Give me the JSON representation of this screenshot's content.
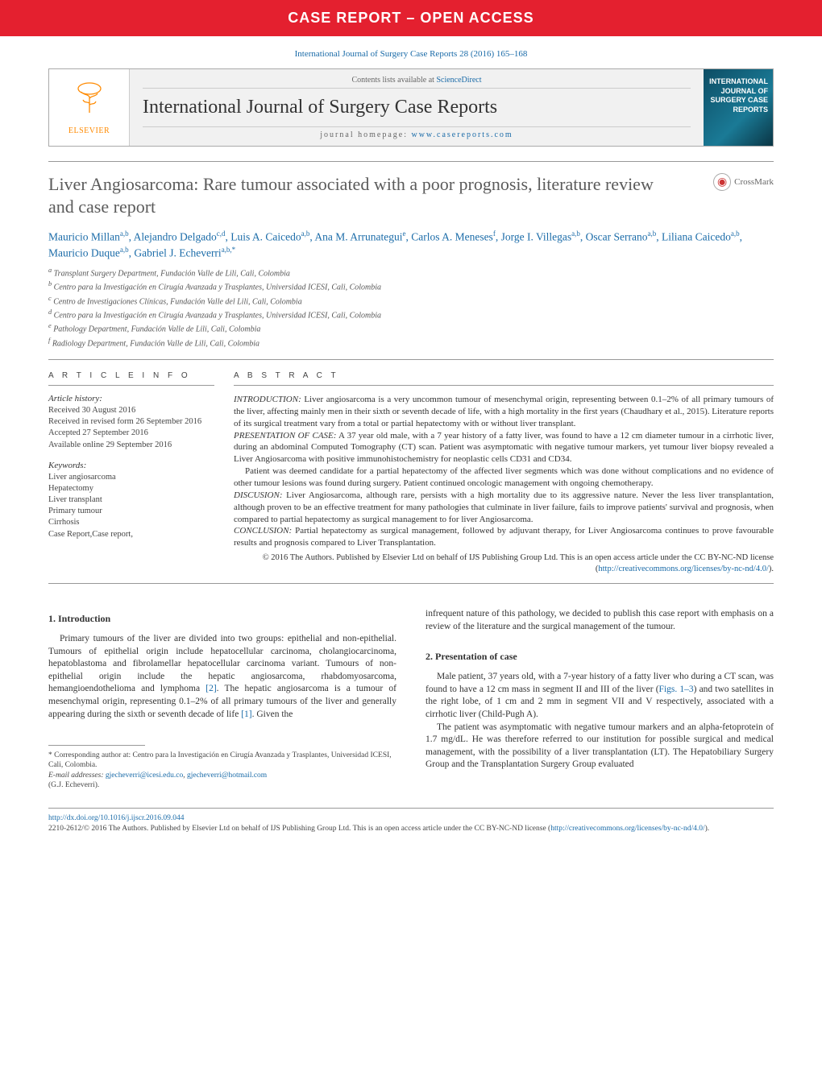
{
  "banner": "CASE REPORT – OPEN ACCESS",
  "citation": "International Journal of Surgery Case Reports 28 (2016) 165–168",
  "journalHeader": {
    "publisher": "ELSEVIER",
    "contentsPrefix": "Contents lists available at ",
    "contentsLink": "ScienceDirect",
    "journalTitle": "International Journal of Surgery Case Reports",
    "homepagePrefix": "journal homepage: ",
    "homepageLink": "www.casereports.com",
    "coverText": "INTERNATIONAL JOURNAL OF SURGERY CASE REPORTS"
  },
  "crossmark": "CrossMark",
  "title": "Liver Angiosarcoma: Rare tumour associated with a poor prognosis, literature review and case report",
  "authorsHtml": "Mauricio Millan<sup>a,b</sup>, Alejandro Delgado<sup>c,d</sup>, Luis A. Caicedo<sup>a,b</sup>, Ana M. Arrunategui<sup>e</sup>, Carlos A. Meneses<sup>f</sup>, Jorge I. Villegas<sup>a,b</sup>, Oscar Serrano<sup>a,b</sup>, Liliana Caicedo<sup>a,b</sup>, Mauricio Duque<sup>a,b</sup>, Gabriel J. Echeverri<sup>a,b,*</sup>",
  "affiliations": [
    "a Transplant Surgery Department, Fundación Valle de Lili, Cali, Colombia",
    "b Centro para la Investigación en Cirugía Avanzada y Trasplantes, Universidad ICESI, Cali, Colombia",
    "c Centro de Investigaciones Clínicas, Fundación Valle del Lili, Cali, Colombia",
    "d Centro para la Investigación en Cirugía Avanzada y Trasplantes, Universidad ICESI, Cali, Colombia",
    "e Pathology Department, Fundación Valle de Lili, Cali, Colombia",
    "f Radiology Department, Fundación Valle de Lili, Cali, Colombia"
  ],
  "articleInfoLabel": "A R T I C L E  I N F O",
  "abstractLabel": "A B S T R A C T",
  "history": {
    "label": "Article history:",
    "received": "Received 30 August 2016",
    "revised": "Received in revised form 26 September 2016",
    "accepted": "Accepted 27 September 2016",
    "online": "Available online 29 September 2016"
  },
  "keywordsLabel": "Keywords:",
  "keywords": [
    "Liver angiosarcoma",
    "Hepatectomy",
    "Liver transplant",
    "Primary tumour",
    "Cirrhosis",
    "Case Report,Case report,"
  ],
  "abstract": {
    "intro": {
      "label": "INTRODUCTION:",
      "text": " Liver angiosarcoma is a very uncommon tumour of mesenchymal origin, representing between 0.1–2% of all primary tumours of the liver, affecting mainly men in their sixth or seventh decade of life, with a high mortality in the first years (Chaudhary et al., 2015). Literature reports of its surgical treatment vary from a total or partial hepatectomy with or without liver transplant."
    },
    "presentation": {
      "label": "PRESENTATION OF CASE:",
      "text": " A 37 year old male, with a 7 year history of a fatty liver, was found to have a 12 cm diameter tumour in a cirrhotic liver, during an abdominal Computed Tomography (CT) scan. Patient was asymptomatic with negative tumour markers, yet tumour liver biopsy revealed a Liver Angiosarcoma with positive immunohistochemistry for neoplastic cells CD31 and CD34."
    },
    "presIndent": "Patient was deemed candidate for a partial hepatectomy of the affected liver segments which was done without complications and no evidence of other tumour lesions was found during surgery. Patient continued oncologic management with ongoing chemotherapy.",
    "discusion": {
      "label": "DISCUSION:",
      "text": " Liver Angiosarcoma, although rare, persists with a high mortality due to its aggressive nature. Never the less liver transplantation, although proven to be an effective treatment for many pathologies that culminate in liver failure, fails to improve patients' survival and prognosis, when compared to partial hepatectomy as surgical management to for liver Angiosarcoma."
    },
    "conclusion": {
      "label": "CONCLUSION:",
      "text": " Partial hepatectomy as surgical management, followed by adjuvant therapy, for Liver Angiosarcoma continues to prove favourable results and prognosis compared to Liver Transplantation."
    },
    "copyright": "© 2016 The Authors. Published by Elsevier Ltd on behalf of IJS Publishing Group Ltd. This is an open access article under the CC BY-NC-ND license (",
    "ccLink": "http://creativecommons.org/licenses/by-nc-nd/4.0/",
    "copyrightClose": ")."
  },
  "body": {
    "sec1": "1.  Introduction",
    "p1a": "Primary tumours of the liver are divided into two groups: epithelial and non-epithelial. Tumours of epithelial origin include hepatocellular carcinoma, cholangiocarcinoma, hepatoblastoma and fibrolamellar hepatocellular carcinoma variant. Tumours of non-epithelial origin include the hepatic angiosarcoma, rhabdomyosarcoma, hemangioendothelioma and lymphoma ",
    "ref2": "[2]",
    "p1b": ". The hepatic angiosarcoma is a tumour of mesenchymal origin, representing 0.1–2% of all primary tumours of the liver and generally appearing during the sixth or seventh decade of life ",
    "ref1": "[1]",
    "p1c": ". Given the ",
    "p2": "infrequent nature of this pathology, we decided to publish this case report with emphasis on a review of the literature and the surgical management of the tumour.",
    "sec2": "2.  Presentation of case",
    "p3a": "Male patient, 37 years old, with a 7-year history of a fatty liver who during a CT scan, was found to have a 12 cm mass in segment II and III of the liver (",
    "figref": "Figs. 1–3",
    "p3b": ") and two satellites in the right lobe, of 1 cm and 2 mm in segment VII and V respectively, associated with a cirrhotic liver (Child-Pugh A).",
    "p4": "The patient was asymptomatic with negative tumour markers and an alpha-fetoprotein of 1.7 mg/dL. He was therefore referred to our institution for possible surgical and medical management, with the possibility of a liver transplantation (LT). The Hepatobiliary Surgery Group and the Transplantation Surgery Group evaluated"
  },
  "correspondence": {
    "star": "* ",
    "text": "Corresponding author at: Centro para la Investigación en Cirugía Avanzada y Trasplantes, Universidad ICESI, Cali, Colombia.",
    "emailLabel": "E-mail addresses: ",
    "email1": "gjecheverri@icesi.edu.co",
    "sep": ", ",
    "email2": "gjecheverri@hotmail.com",
    "who": "(G.J. Echeverri)."
  },
  "footer": {
    "doi": "http://dx.doi.org/10.1016/j.ijscr.2016.09.044",
    "issnLine": "2210-2612/© 2016 The Authors. Published by Elsevier Ltd on behalf of IJS Publishing Group Ltd. This is an open access article under the CC BY-NC-ND license (",
    "ccLink": "http://creativecommons.org/licenses/by-nc-nd/4.0/",
    "close": ")."
  },
  "colors": {
    "bannerBg": "#e4202f",
    "link": "#1a6ba8",
    "elsevierOrange": "#ff8a00",
    "titleGrey": "#5b5b5b",
    "rule": "#999999"
  }
}
